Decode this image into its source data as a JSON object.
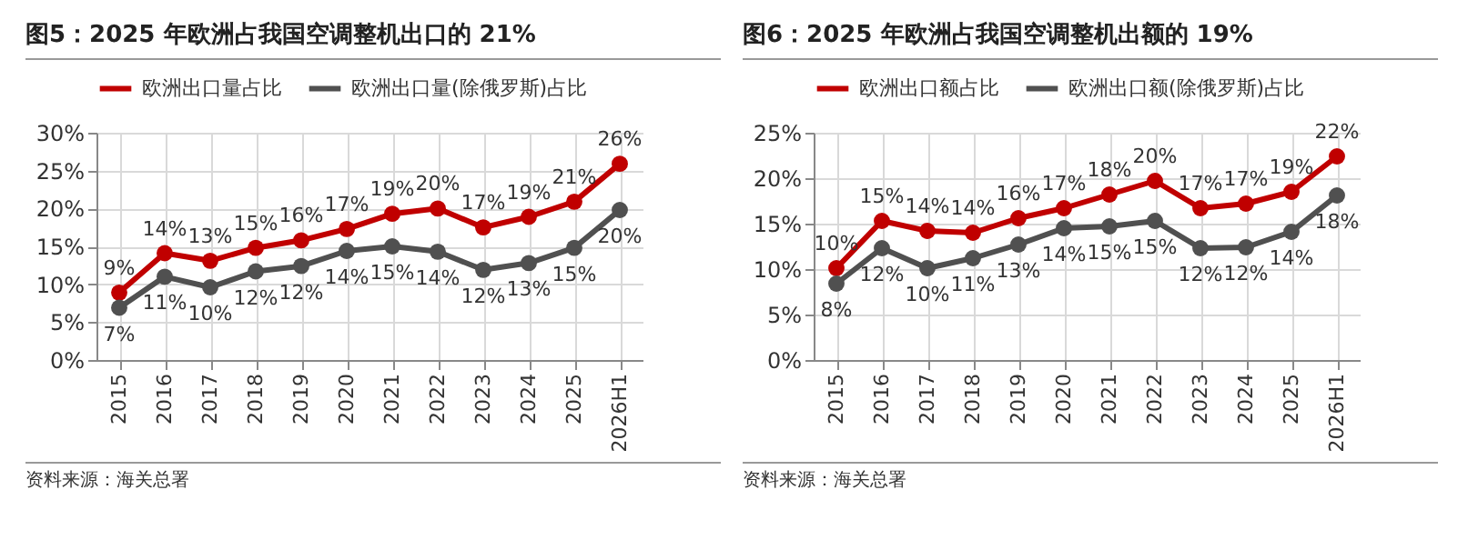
{
  "chart_data": [
    {
      "type": "line",
      "title": "图5：2025 年欧洲占我国空调整机出口的 21%",
      "categories": [
        "2015",
        "2016",
        "2017",
        "2018",
        "2019",
        "2020",
        "2021",
        "2022",
        "2023",
        "2024",
        "2025",
        "2026H1"
      ],
      "series": [
        {
          "name": "欧洲出口量占比",
          "color": "#c00000",
          "values": [
            8.9,
            14.1,
            13.1,
            14.8,
            15.8,
            17.3,
            19.3,
            20.0,
            17.5,
            18.9,
            20.9,
            25.9
          ],
          "value_labels": [
            "9%",
            "14%",
            "13%",
            "15%",
            "16%",
            "17%",
            "19%",
            "20%",
            "17%",
            "19%",
            "21%",
            "26%"
          ]
        },
        {
          "name": "欧洲出口量(除俄罗斯)占比",
          "color": "#505050",
          "values": [
            6.9,
            11.0,
            9.6,
            11.7,
            12.4,
            14.4,
            15.0,
            14.3,
            11.9,
            12.8,
            14.8,
            19.8
          ],
          "value_labels": [
            "7%",
            "11%",
            "10%",
            "12%",
            "12%",
            "14%",
            "15%",
            "14%",
            "12%",
            "13%",
            "15%",
            "20%"
          ]
        }
      ],
      "ylim": [
        0,
        30
      ],
      "yticks": [
        {
          "value": 0,
          "label": "0%"
        },
        {
          "value": 5,
          "label": "5%"
        },
        {
          "value": 10,
          "label": "10%"
        },
        {
          "value": 15,
          "label": "15%"
        },
        {
          "value": 20,
          "label": "20%"
        },
        {
          "value": 25,
          "label": "25%"
        },
        {
          "value": 30,
          "label": "30%"
        }
      ],
      "grid": true,
      "legend": "top",
      "marker": "circle",
      "line_style": "solid",
      "annotations": [
        "资料来源：海关总署"
      ]
    },
    {
      "type": "line",
      "title": "图6：2025 年欧洲占我国空调整机出额的 19%",
      "categories": [
        "2015",
        "2016",
        "2017",
        "2018",
        "2019",
        "2020",
        "2021",
        "2022",
        "2023",
        "2024",
        "2025",
        "2026H1"
      ],
      "series": [
        {
          "name": "欧洲出口额占比",
          "color": "#c00000",
          "values": [
            10.1,
            15.3,
            14.2,
            14.0,
            15.6,
            16.7,
            18.2,
            19.7,
            16.7,
            17.2,
            18.5,
            22.4
          ],
          "value_labels": [
            "10%",
            "15%",
            "14%",
            "14%",
            "16%",
            "17%",
            "18%",
            "20%",
            "17%",
            "17%",
            "19%",
            "22%"
          ]
        },
        {
          "name": "欧洲出口额(除俄罗斯)占比",
          "color": "#505050",
          "values": [
            8.4,
            12.3,
            10.1,
            11.2,
            12.7,
            14.5,
            14.7,
            15.3,
            12.3,
            12.4,
            14.1,
            18.1
          ],
          "value_labels": [
            "8%",
            "12%",
            "10%",
            "11%",
            "13%",
            "14%",
            "15%",
            "15%",
            "12%",
            "12%",
            "14%",
            "18%"
          ]
        }
      ],
      "ylim": [
        0,
        25
      ],
      "yticks": [
        {
          "value": 0,
          "label": "0%"
        },
        {
          "value": 5,
          "label": "5%"
        },
        {
          "value": 10,
          "label": "10%"
        },
        {
          "value": 15,
          "label": "15%"
        },
        {
          "value": 20,
          "label": "20%"
        },
        {
          "value": 25,
          "label": "25%"
        }
      ],
      "grid": true,
      "legend": "top",
      "marker": "circle",
      "line_style": "solid",
      "annotations": [
        "资料来源：海关总署"
      ]
    }
  ]
}
